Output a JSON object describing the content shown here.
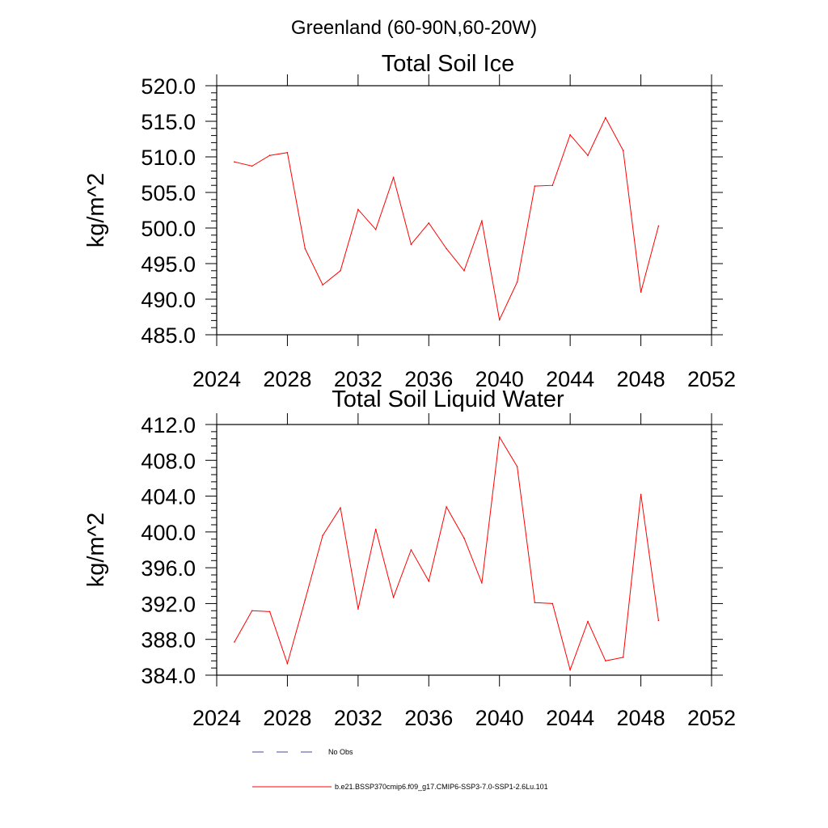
{
  "figure": {
    "suptitle": "Greenland (60-90N,60-20W)"
  },
  "chart_data": [
    {
      "type": "line",
      "title": "Total Soil Ice",
      "xlabel": "",
      "ylabel": "kg/m^2",
      "xlim": [
        2024,
        2052
      ],
      "ylim": [
        485,
        520
      ],
      "xticks": [
        2024,
        2028,
        2032,
        2036,
        2040,
        2044,
        2048,
        2052
      ],
      "yticks": [
        "485.0",
        "490.0",
        "495.0",
        "500.0",
        "505.0",
        "510.0",
        "515.0",
        "520.0"
      ],
      "grid": false,
      "series": [
        {
          "name": "b.e21.BSSP370cmip6.f09_g17.CMIP6-SSP3-7.0-SSP1-2.6Lu.101",
          "color": "#ff0000",
          "x": [
            2025,
            2026,
            2027,
            2028,
            2029,
            2030,
            2031,
            2032,
            2033,
            2034,
            2035,
            2036,
            2037,
            2038,
            2039,
            2040,
            2041,
            2042,
            2043,
            2044,
            2045,
            2046,
            2047,
            2048,
            2049
          ],
          "values": [
            509.3,
            508.7,
            510.2,
            510.6,
            497.1,
            492.0,
            494.0,
            502.6,
            499.8,
            507.1,
            497.7,
            500.7,
            497.1,
            494.0,
            501.0,
            487.1,
            492.4,
            505.9,
            506.0,
            513.1,
            510.2,
            515.5,
            510.9,
            491.0,
            500.3
          ]
        }
      ]
    },
    {
      "type": "line",
      "title": "Total Soil Liquid Water",
      "xlabel": "",
      "ylabel": "kg/m^2",
      "xlim": [
        2024,
        2052
      ],
      "ylim": [
        384,
        412
      ],
      "xticks": [
        2024,
        2028,
        2032,
        2036,
        2040,
        2044,
        2048,
        2052
      ],
      "yticks": [
        "384.0",
        "388.0",
        "392.0",
        "396.0",
        "400.0",
        "404.0",
        "408.0",
        "412.0"
      ],
      "grid": false,
      "series": [
        {
          "name": "b.e21.BSSP370cmip6.f09_g17.CMIP6-SSP3-7.0-SSP1-2.6Lu.101",
          "color": "#ff0000",
          "x": [
            2025,
            2026,
            2027,
            2028,
            2029,
            2030,
            2031,
            2032,
            2033,
            2034,
            2035,
            2036,
            2037,
            2038,
            2039,
            2040,
            2041,
            2042,
            2043,
            2044,
            2045,
            2046,
            2047,
            2048,
            2049
          ],
          "values": [
            387.7,
            391.2,
            391.1,
            385.3,
            392.4,
            399.6,
            402.7,
            391.4,
            400.3,
            392.7,
            398.0,
            394.5,
            402.8,
            399.3,
            394.3,
            410.6,
            407.3,
            392.1,
            392.0,
            384.6,
            390.0,
            385.6,
            386.0,
            404.2,
            390.1
          ]
        }
      ]
    }
  ],
  "legend": {
    "placement": "bottom",
    "items": [
      {
        "label": "No Obs",
        "color": "#4a4aa0",
        "dash": "dashed"
      },
      {
        "label": "b.e21.BSSP370cmip6.f09_g17.CMIP6-SSP3-7.0-SSP1-2.6Lu.101",
        "color": "#ff0000",
        "dash": "solid"
      }
    ]
  }
}
